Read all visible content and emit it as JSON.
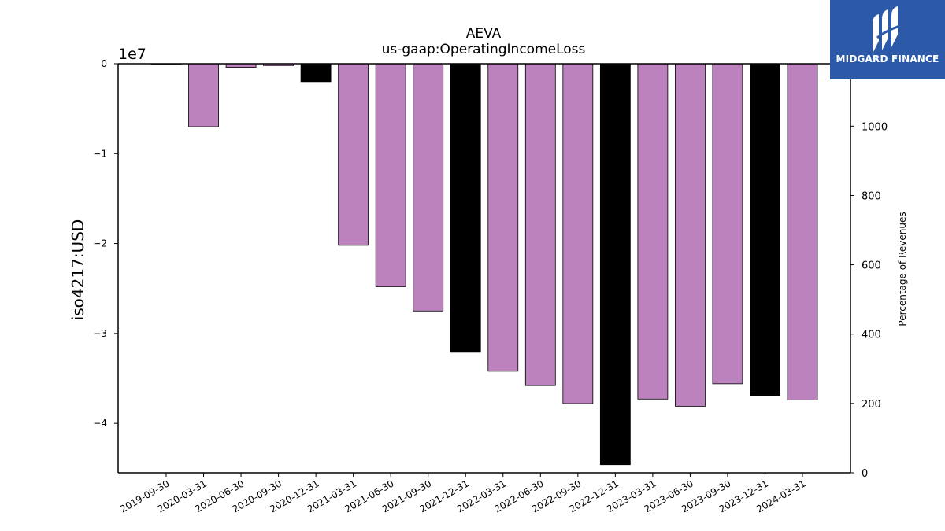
{
  "chart_data": {
    "type": "bar",
    "title": "AEVA",
    "subtitle": "us-gaap:OperatingIncomeLoss",
    "ylabel": "iso4217:USD",
    "y_scale_label": "1e7",
    "y2label": "Percentage of Revenues",
    "ylim": [
      -45500000,
      0
    ],
    "y_ticks": [
      0,
      -10000000,
      -20000000,
      -30000000,
      -40000000
    ],
    "y_tick_labels": [
      "0",
      "−1",
      "−2",
      "−3",
      "−4"
    ],
    "y2lim": [
      0,
      1180
    ],
    "y2_ticks": [
      0,
      200,
      400,
      600,
      800,
      1000
    ],
    "y2_tick_labels": [
      "0",
      "200",
      "400",
      "600",
      "800",
      "1000"
    ],
    "categories": [
      "2019-09-30",
      "2020-03-31",
      "2020-06-30",
      "2020-09-30",
      "2020-12-31",
      "2021-03-31",
      "2021-06-30",
      "2021-09-30",
      "2021-12-31",
      "2022-03-31",
      "2022-06-30",
      "2022-09-30",
      "2022-12-31",
      "2023-03-31",
      "2023-06-30",
      "2023-09-30",
      "2023-12-31",
      "2024-03-31"
    ],
    "values": [
      0,
      -7000000,
      -400000,
      -200000,
      -2000000,
      -20200000,
      -24800000,
      -27500000,
      -32100000,
      -34200000,
      -35800000,
      -37800000,
      -44600000,
      -37300000,
      -38100000,
      -35600000,
      -36900000,
      -37400000
    ],
    "bar_kinds": [
      "quarter",
      "quarter",
      "quarter",
      "quarter",
      "annual",
      "quarter",
      "quarter",
      "quarter",
      "annual",
      "quarter",
      "quarter",
      "quarter",
      "annual",
      "quarter",
      "quarter",
      "quarter",
      "annual",
      "quarter"
    ],
    "colors": {
      "quarter": "#bc82bd",
      "annual": "#000000",
      "edge": "#000000"
    },
    "grid": false,
    "legend": "none"
  },
  "logo": {
    "text": "MIDGARD FINANCE",
    "color": "#2c5aa8"
  }
}
